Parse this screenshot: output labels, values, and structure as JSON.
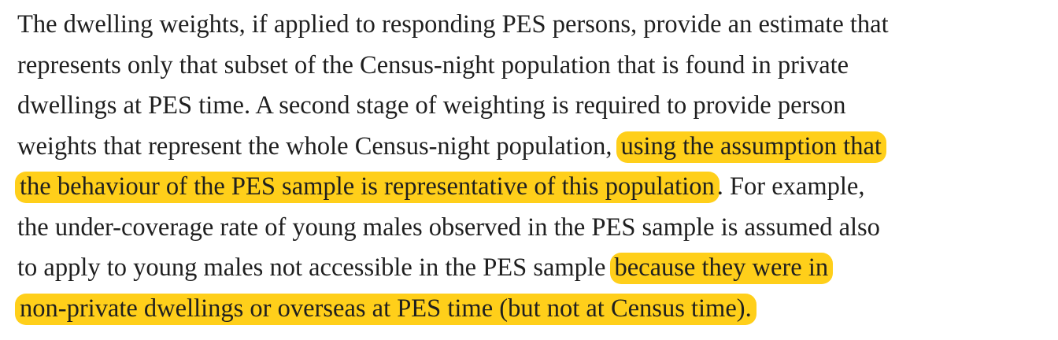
{
  "document": {
    "highlight_color": "#ffcf1a",
    "text_color": "#1f1f1f",
    "lines": [
      {
        "before": "The dwelling weights, if applied to responding PES persons, provide an estimate that",
        "highlight": "",
        "after": ""
      },
      {
        "before": "represents only that subset of the Census-night population that is found in private",
        "highlight": "",
        "after": ""
      },
      {
        "before": "dwellings at PES time.  A second stage of weighting is required to provide person",
        "highlight": "",
        "after": ""
      },
      {
        "before": "weights that represent the whole Census-night population, ",
        "highlight": "using the assumption that",
        "after": ""
      },
      {
        "before": "",
        "highlight": "the behaviour of the PES sample is representative of this population",
        "after": ".  For example,"
      },
      {
        "before": "the under-coverage rate of young males observed in the PES sample is assumed also",
        "highlight": "",
        "after": ""
      },
      {
        "before": "to apply to young males not accessible in the PES sample ",
        "highlight": "because they were in",
        "after": ""
      },
      {
        "before": "",
        "highlight": "non-private dwellings or overseas at PES time (but not at Census time).",
        "after": ""
      }
    ]
  }
}
